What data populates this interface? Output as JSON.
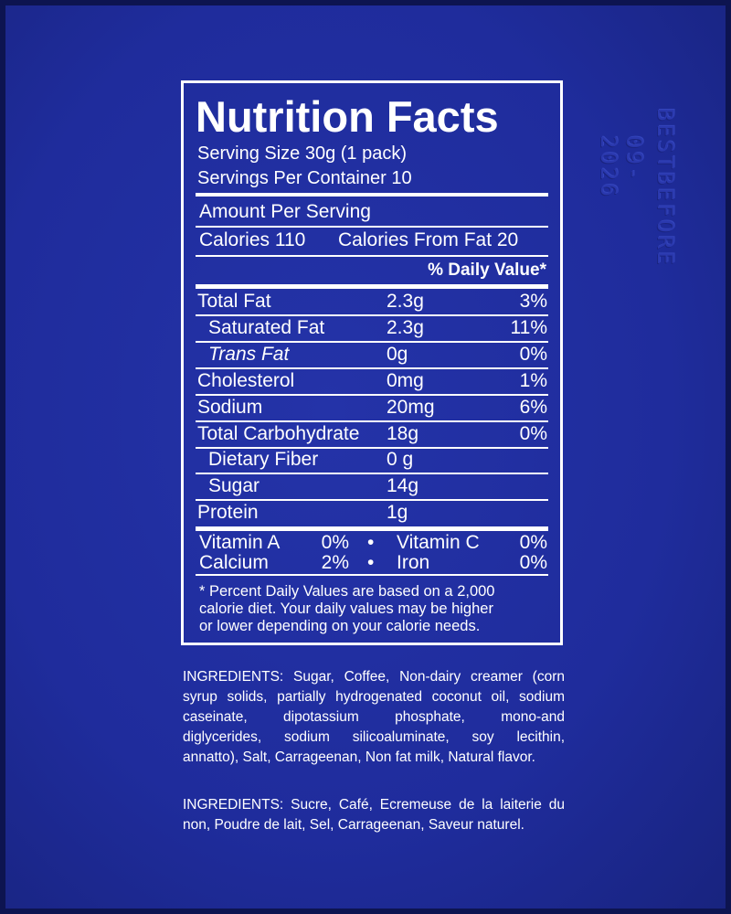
{
  "header": {
    "title": "Nutrition Facts",
    "serving_size": "Serving Size  30g  (1 pack)",
    "servings": "Servings Per Container  10"
  },
  "amount_per_serving": "Amount Per Serving",
  "calories": "Calories 110",
  "calories_from_fat": "Calories From Fat 20",
  "daily_value_header": "% Daily Value*",
  "nutrients": [
    {
      "name": "Total Fat",
      "amount": "2.3g",
      "dv": "3%"
    },
    {
      "name": "Saturated Fat",
      "amount": "2.3g",
      "dv": "11%",
      "sub": true
    },
    {
      "name": "Trans Fat",
      "amount": "0g",
      "dv": "0%",
      "sub": true,
      "italic": true
    },
    {
      "name": "Cholesterol",
      "amount": "0mg",
      "dv": "1%"
    },
    {
      "name": "Sodium",
      "amount": "20mg",
      "dv": "6%"
    },
    {
      "name": "Total Carbohydrate",
      "amount": "18g",
      "dv": "0%"
    },
    {
      "name": "Dietary Fiber",
      "amount": "0 g",
      "sub": true
    },
    {
      "name": "Sugar",
      "amount": "14g",
      "sub": true
    },
    {
      "name": "Protein",
      "amount": "1g"
    }
  ],
  "vitamins": [
    [
      {
        "name": "Vitamin A",
        "value": "0%"
      },
      {
        "name": "Vitamin C",
        "value": "0%"
      }
    ],
    [
      {
        "name": "Calcium",
        "value": "2%"
      },
      {
        "name": "Iron",
        "value": "0%"
      }
    ]
  ],
  "vitamin_separator": "•",
  "footnote": [
    "* Percent Daily Values are based on a 2,000",
    "calorie diet. Your daily values may be higher",
    "or lower depending on your calorie needs."
  ],
  "ingredients_en": [
    "INGREDIENTS: Sugar, Coffee, Non-dairy creamer (corn",
    "syrup solids, partially hydrogenated coconut oil, sodium",
    "caseinate, dipotassium phosphate, mono-and",
    "diglycerides, sodium silicoaluminate, soy lecithin,",
    "annatto), Salt, Carrageenan, Non fat milk, Natural flavor."
  ],
  "ingredients_fr": [
    "INGREDIENTS: Sucre, Café, Ecremeuse de la laiterie du",
    "non, Poudre de lait, Sel, Carrageenan, Saveur naturel."
  ],
  "best_before": [
    "BESTBEFORE",
    "09-2026"
  ]
}
